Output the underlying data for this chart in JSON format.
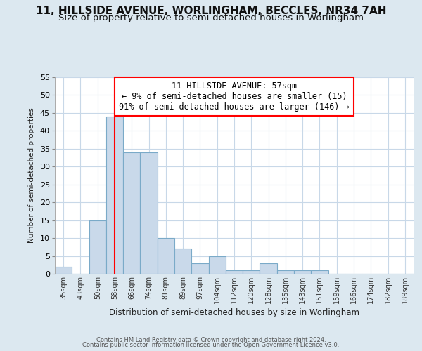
{
  "title1": "11, HILLSIDE AVENUE, WORLINGHAM, BECCLES, NR34 7AH",
  "title2": "Size of property relative to semi-detached houses in Worlingham",
  "xlabel": "Distribution of semi-detached houses by size in Worlingham",
  "ylabel": "Number of semi-detached properties",
  "categories": [
    "35sqm",
    "43sqm",
    "50sqm",
    "58sqm",
    "66sqm",
    "74sqm",
    "81sqm",
    "89sqm",
    "97sqm",
    "104sqm",
    "112sqm",
    "120sqm",
    "128sqm",
    "135sqm",
    "143sqm",
    "151sqm",
    "159sqm",
    "166sqm",
    "174sqm",
    "182sqm",
    "189sqm"
  ],
  "values": [
    2,
    0,
    15,
    44,
    34,
    34,
    10,
    7,
    3,
    5,
    1,
    1,
    3,
    1,
    1,
    1,
    0,
    0,
    0,
    0,
    0
  ],
  "bar_color": "#c9d9ea",
  "bar_edge_color": "#7aaac8",
  "vline_x": 3,
  "vline_color": "red",
  "annotation_text": "11 HILLSIDE AVENUE: 57sqm\n← 9% of semi-detached houses are smaller (15)\n91% of semi-detached houses are larger (146) →",
  "annotation_box_color": "white",
  "annotation_box_edge_color": "red",
  "ylim": [
    0,
    55
  ],
  "yticks": [
    0,
    5,
    10,
    15,
    20,
    25,
    30,
    35,
    40,
    45,
    50,
    55
  ],
  "footer1": "Contains HM Land Registry data © Crown copyright and database right 2024.",
  "footer2": "Contains public sector information licensed under the Open Government Licence v3.0.",
  "bg_color": "#dce8f0",
  "plot_bg_color": "#ffffff",
  "grid_color": "#c8d8e8",
  "title1_fontsize": 11,
  "title2_fontsize": 9.5,
  "annot_fontsize": 8.5
}
